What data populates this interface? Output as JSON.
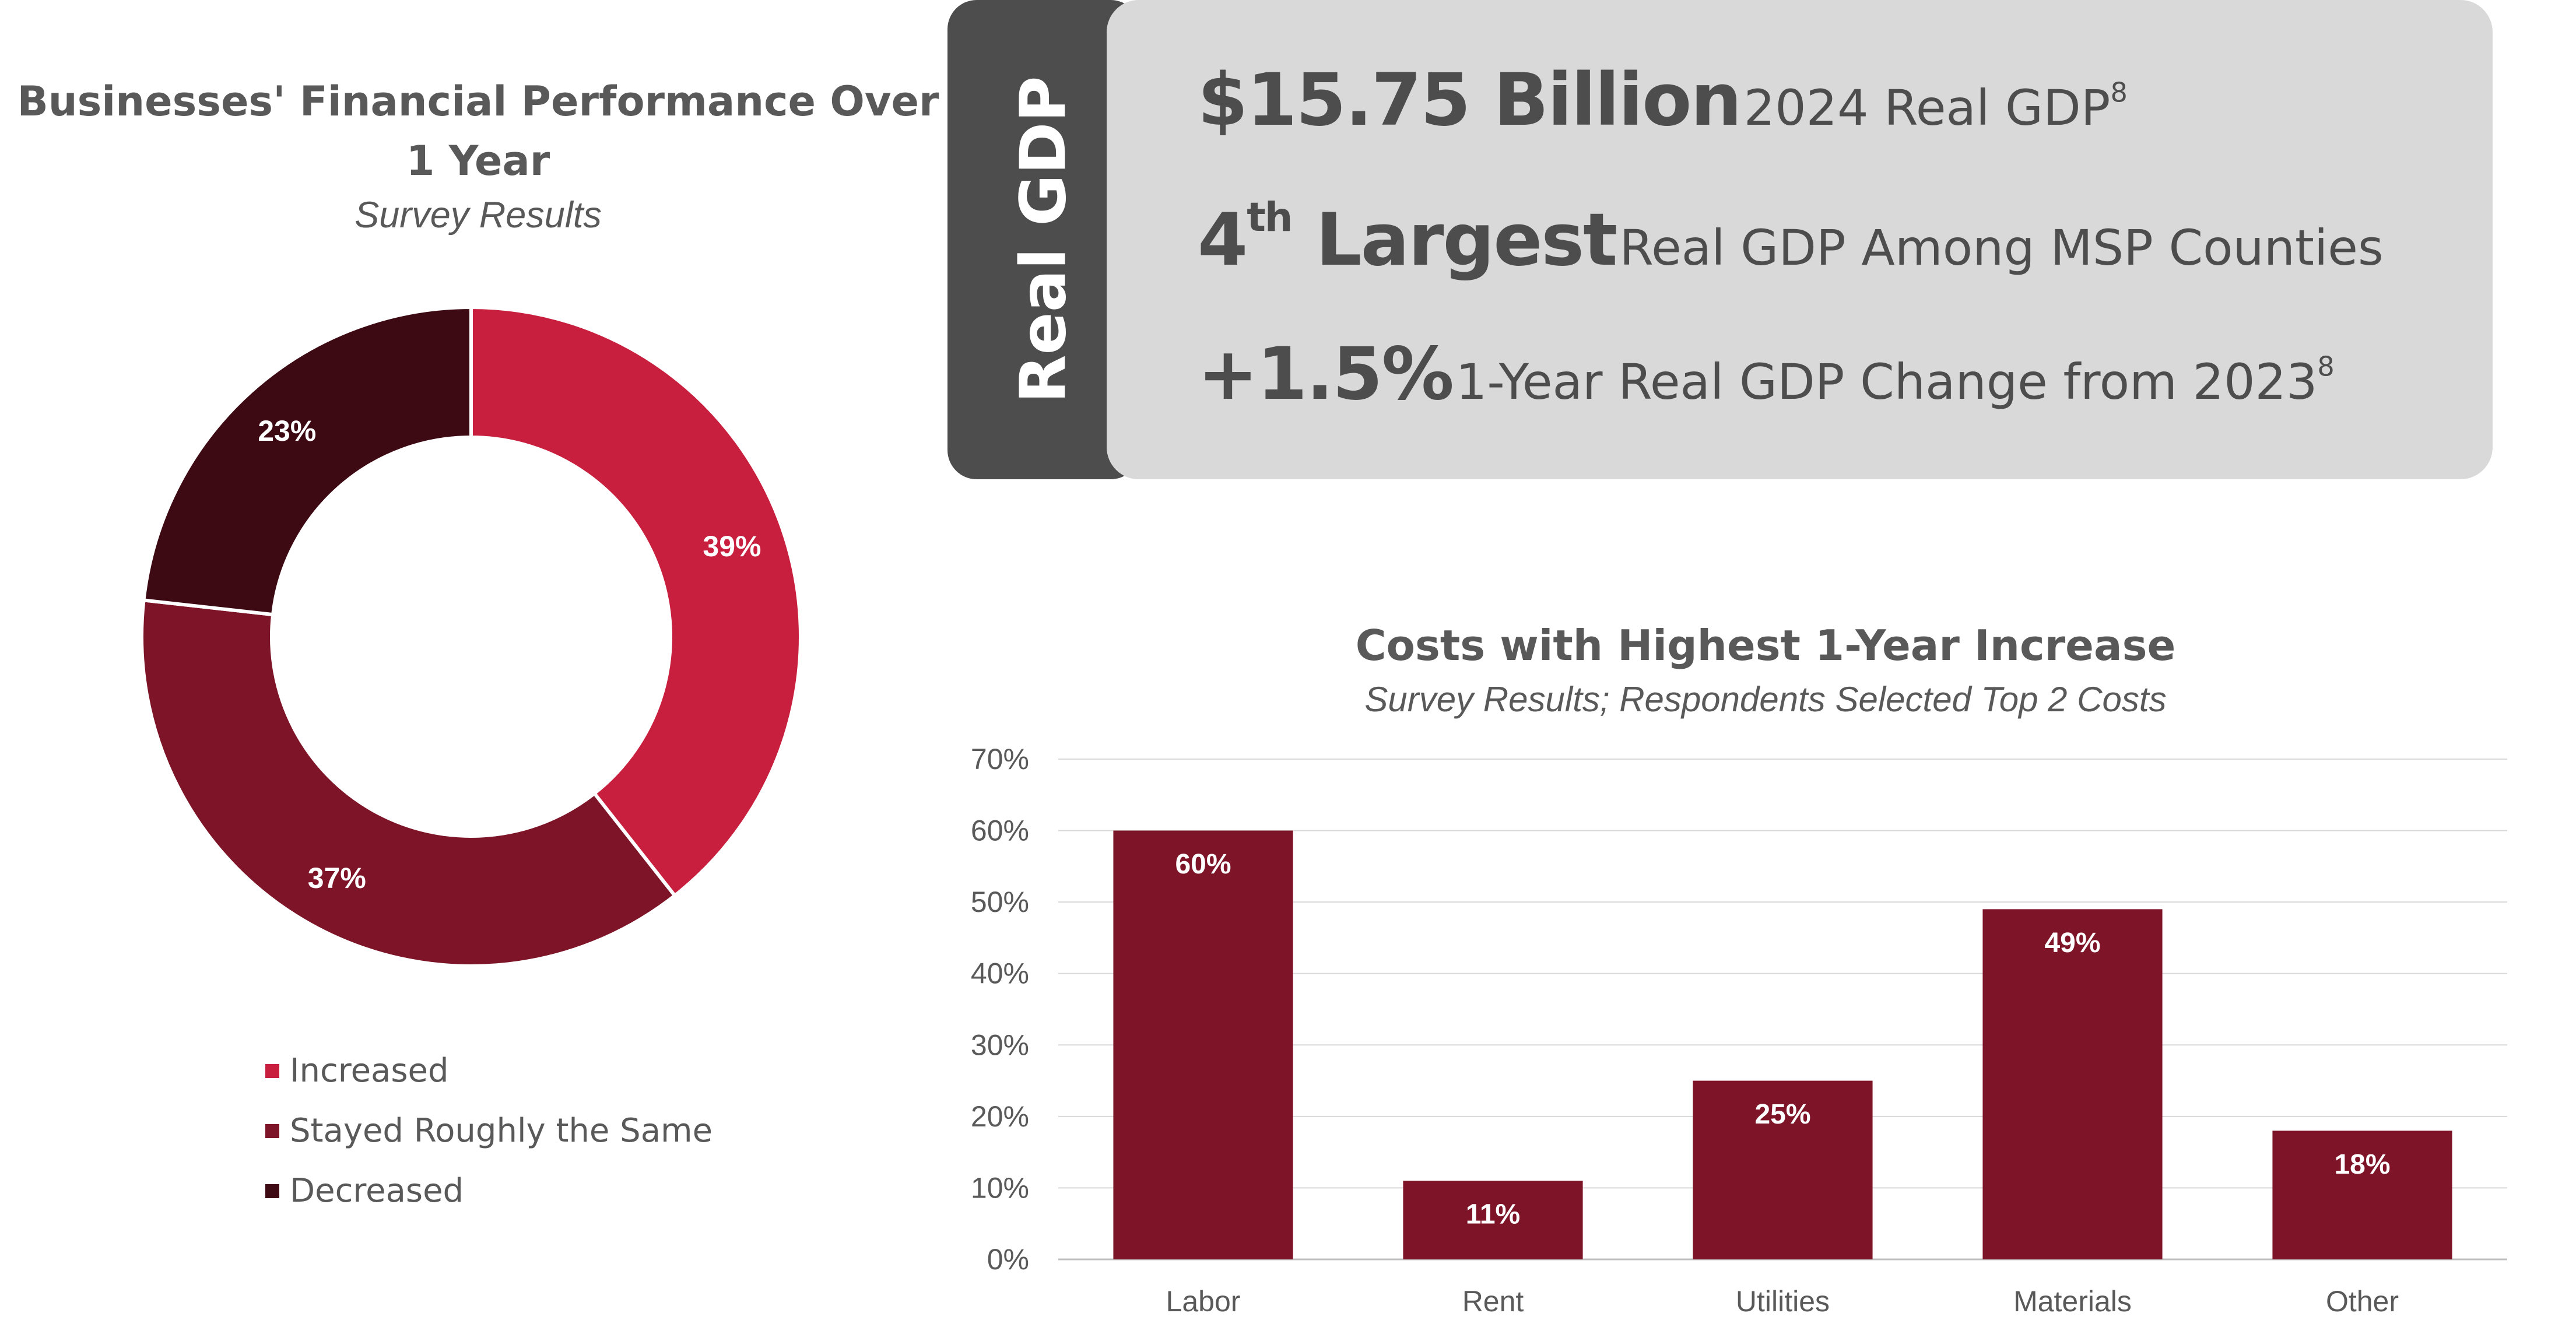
{
  "chart_data": [
    {
      "type": "pie",
      "title": "Businesses' Financial Performance Over 1 Year",
      "subtitle": "Survey Results",
      "labels": [
        "Increased",
        "Stayed Roughly the Same",
        "Decreased"
      ],
      "values": [
        39,
        37,
        23
      ],
      "data_labels": [
        "39%",
        "37%",
        "23%"
      ],
      "colors": [
        "#c91f3e",
        "#7d1428",
        "#3d0a14"
      ],
      "legend_position": "bottom"
    },
    {
      "type": "bar",
      "title": "Costs with Highest 1-Year Increase",
      "subtitle": "Survey Results; Respondents Selected Top 2 Costs",
      "categories": [
        "Labor",
        "Rent",
        "Utilities",
        "Materials",
        "Other"
      ],
      "values": [
        60,
        11,
        25,
        49,
        18
      ],
      "data_labels": [
        "60%",
        "11%",
        "25%",
        "49%",
        "18%"
      ],
      "yticks": [
        "0%",
        "10%",
        "20%",
        "30%",
        "40%",
        "50%",
        "60%",
        "70%"
      ],
      "ylim": [
        0,
        70
      ],
      "grid": true,
      "color": "#7d1428"
    }
  ],
  "gdp": {
    "tab_label": "Real GDP",
    "line1_big": "$15.75 Billion",
    "line1_small": "2024 Real GDP",
    "line1_sup": "8",
    "line2_big": "4",
    "line2_big_sup": "th",
    "line2_big_rest": "Largest",
    "line2_small": "Real GDP Among MSP Counties",
    "line3_big": "+1.5%",
    "line3_small": "1-Year Real GDP Change from 2023",
    "line3_sup": "8"
  }
}
